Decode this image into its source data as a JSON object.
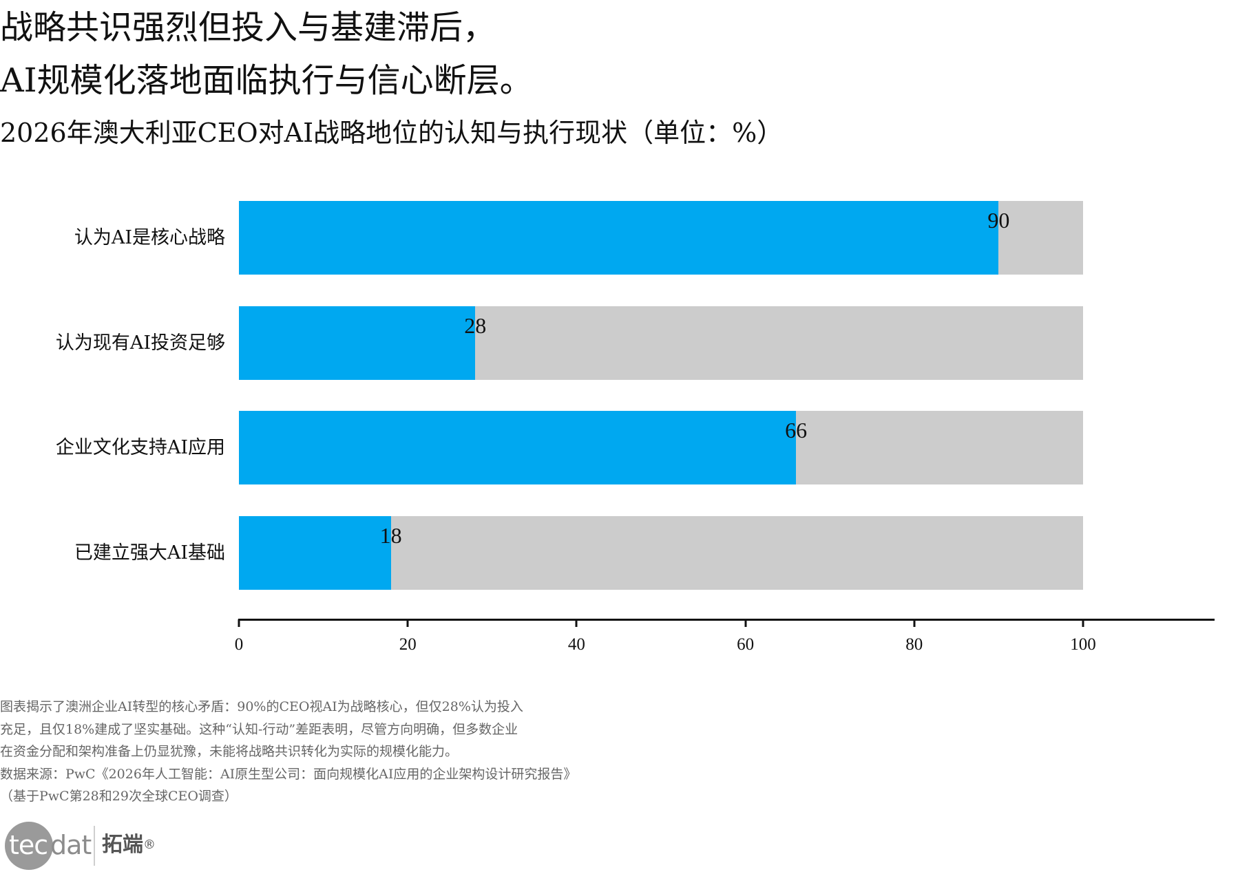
{
  "header": {
    "title_line1": "战略共识强烈但投入与基建滞后，",
    "title_line2": "AI规模化落地面临执行与信心断层。",
    "subtitle": "2026年澳大利亚CEO对AI战略地位的认知与执行现状（单位：%）"
  },
  "colors": {
    "value_bar": "#00a8f0",
    "background_bar": "#cccccc",
    "text": "#111111",
    "note_text": "#666666"
  },
  "chart_data": {
    "type": "bar",
    "orientation": "horizontal",
    "title": "2026年澳大利亚CEO对AI战略地位的认知与执行现状（单位：%）",
    "categories": [
      "认为AI是核心战略",
      "认为现有AI投资足够",
      "企业文化支持AI应用",
      "已建立强大AI基础"
    ],
    "values": [
      90,
      28,
      66,
      18
    ],
    "background_values": [
      100,
      100,
      100,
      100
    ],
    "value_labels": [
      "90",
      "28",
      "66",
      "18"
    ],
    "xlabel": "",
    "ylabel": "",
    "xlim": [
      0,
      115
    ],
    "xticks": [
      0,
      20,
      40,
      60,
      80,
      100
    ],
    "xtick_labels": [
      "0",
      "20",
      "40",
      "60",
      "80",
      "100"
    ],
    "grid": false,
    "legend": null
  },
  "notes": {
    "lines": [
      "图表揭示了澳洲企业AI转型的核心矛盾：90%的CEO视AI为战略核心，但仅28%认为投入",
      "充足，且仅18%建成了坚实基础。这种“认知-行动”差距表明，尽管方向明确，但多数企业",
      "在资金分配和架构准备上仍显犹豫，未能将战略共识转化为实际的规模化能力。",
      "数据来源：PwC《2026年人工智能：AI原生型公司：面向规模化AI应用的企业架构设计研究报告》",
      "（基于PwC第28和29次全球CEO调查）"
    ]
  },
  "logo": {
    "part1": "tec",
    "part2": "dat",
    "cn_name": "拓端",
    "registered": "®"
  }
}
